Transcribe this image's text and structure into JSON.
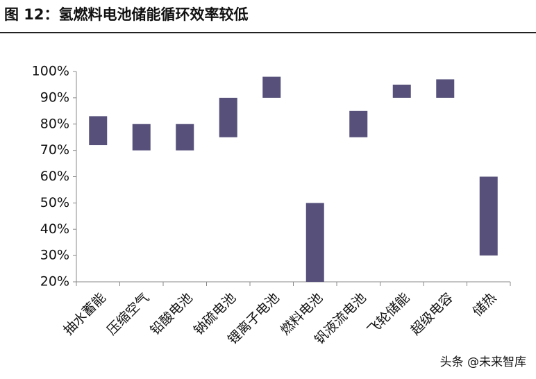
{
  "chart_data": {
    "type": "range-bar",
    "title": "图 12：氢燃料电池储能循环效率较低",
    "categories": [
      "抽水蓄能",
      "压缩空气",
      "铅酸电池",
      "钠硫电池",
      "锂离子电池",
      "燃料电池",
      "钒液流电池",
      "飞轮储能",
      "超级电容",
      "储热"
    ],
    "low": [
      72,
      70,
      70,
      75,
      90,
      20,
      75,
      90,
      90,
      30
    ],
    "high": [
      83,
      80,
      80,
      90,
      98,
      50,
      85,
      95,
      97,
      60
    ],
    "color": "#56507a",
    "ylim": [
      20,
      100
    ],
    "yticks": [
      {
        "value": 20,
        "label": "20%"
      },
      {
        "value": 30,
        "label": "30%"
      },
      {
        "value": 40,
        "label": "40%"
      },
      {
        "value": 50,
        "label": "50%"
      },
      {
        "value": 60,
        "label": "60%"
      },
      {
        "value": 70,
        "label": "70%"
      },
      {
        "value": 80,
        "label": "80%"
      },
      {
        "value": 90,
        "label": "90%"
      },
      {
        "value": 100,
        "label": "100%"
      }
    ],
    "watermark": "头条 @未来智库"
  }
}
